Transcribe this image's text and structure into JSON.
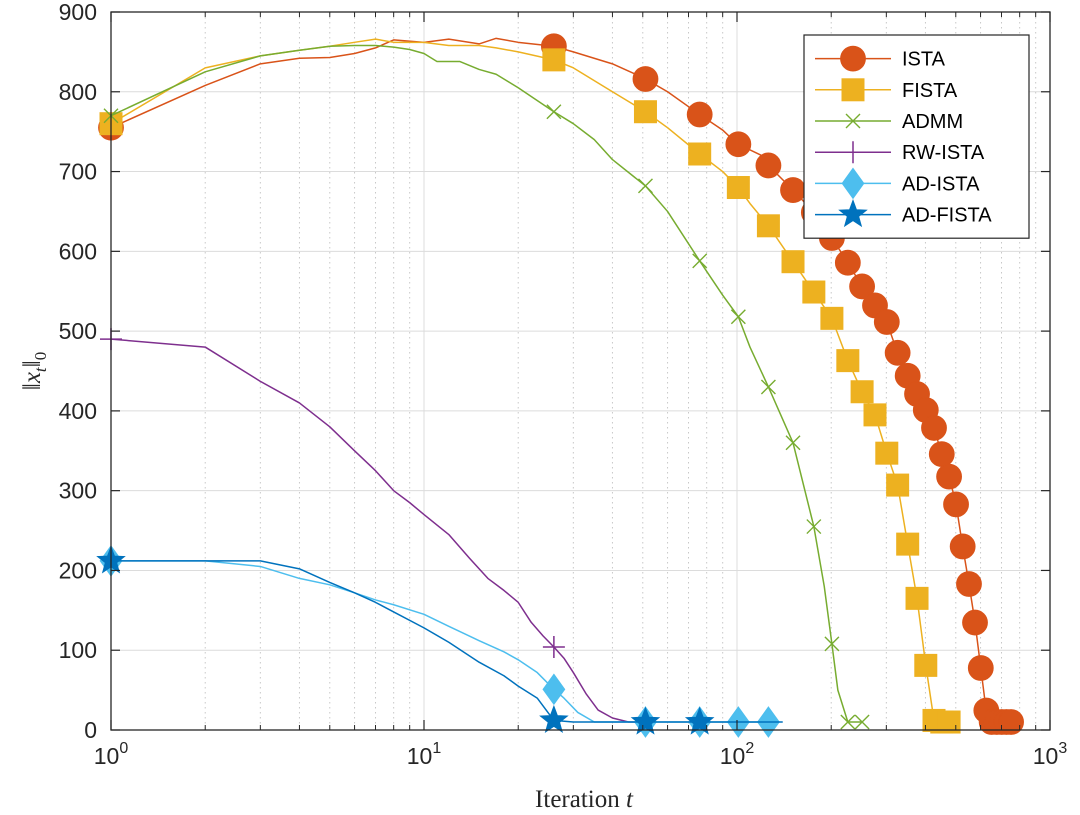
{
  "chart_data": {
    "type": "line",
    "title": "",
    "xlabel_prefix": "Iteration ",
    "xlabel_var": "t",
    "ylabel": "||x_t||_0",
    "xscale": "log",
    "xlim": [
      1,
      1000
    ],
    "ylim": [
      0,
      900
    ],
    "yticks": [
      0,
      100,
      200,
      300,
      400,
      500,
      600,
      700,
      800,
      900
    ],
    "xticks": [
      1,
      10,
      100,
      1000
    ],
    "xtick_base": "10",
    "xtick_exponents": [
      "0",
      "1",
      "2",
      "3"
    ],
    "grid": true,
    "legend_position": "top-right",
    "series": [
      {
        "name": "ISTA",
        "color": "#D95319",
        "marker": "circle",
        "points": [
          [
            1,
            755
          ],
          [
            2,
            808
          ],
          [
            3,
            835
          ],
          [
            4,
            842
          ],
          [
            5,
            843
          ],
          [
            6,
            848
          ],
          [
            7,
            855
          ],
          [
            8,
            865
          ],
          [
            10,
            862
          ],
          [
            12,
            866
          ],
          [
            15,
            860
          ],
          [
            17,
            867
          ],
          [
            20,
            862
          ],
          [
            26,
            857
          ],
          [
            30,
            850
          ],
          [
            40,
            835
          ],
          [
            50,
            818
          ],
          [
            60,
            800
          ],
          [
            75,
            773
          ],
          [
            90,
            752
          ],
          [
            100,
            735
          ],
          [
            120,
            720
          ],
          [
            125,
            709
          ],
          [
            150,
            678
          ],
          [
            175,
            650
          ],
          [
            200,
            618
          ],
          [
            225,
            587
          ],
          [
            250,
            557
          ],
          [
            275,
            533
          ],
          [
            300,
            513
          ],
          [
            325,
            474
          ],
          [
            350,
            445
          ],
          [
            375,
            422
          ],
          [
            400,
            402
          ],
          [
            425,
            380
          ],
          [
            450,
            347
          ],
          [
            475,
            319
          ],
          [
            500,
            285
          ],
          [
            525,
            232
          ],
          [
            550,
            185
          ],
          [
            575,
            137
          ],
          [
            600,
            80
          ],
          [
            625,
            25
          ],
          [
            650,
            10
          ],
          [
            675,
            10
          ],
          [
            700,
            10
          ],
          [
            725,
            10
          ],
          [
            750,
            10
          ]
        ],
        "markers_x": [
          1,
          26,
          51,
          76,
          101,
          126,
          151,
          176,
          201,
          226,
          251,
          276,
          301,
          326,
          351,
          376,
          401,
          426,
          451,
          476,
          501,
          526,
          551,
          576,
          601,
          626,
          651,
          676,
          701,
          726,
          751
        ]
      },
      {
        "name": "FISTA",
        "color": "#EDB120",
        "marker": "square",
        "points": [
          [
            1,
            760
          ],
          [
            2,
            830
          ],
          [
            3,
            845
          ],
          [
            4,
            852
          ],
          [
            5,
            857
          ],
          [
            6,
            862
          ],
          [
            7,
            866
          ],
          [
            8,
            862
          ],
          [
            10,
            862
          ],
          [
            12,
            858
          ],
          [
            15,
            858
          ],
          [
            17,
            855
          ],
          [
            20,
            850
          ],
          [
            26,
            840
          ],
          [
            30,
            830
          ],
          [
            40,
            800
          ],
          [
            51,
            775
          ],
          [
            60,
            755
          ],
          [
            76,
            722
          ],
          [
            90,
            700
          ],
          [
            101,
            680
          ],
          [
            110,
            660
          ],
          [
            126,
            632
          ],
          [
            151,
            587
          ],
          [
            176,
            549
          ],
          [
            201,
            516
          ],
          [
            226,
            463
          ],
          [
            251,
            424
          ],
          [
            276,
            395
          ],
          [
            301,
            347
          ],
          [
            326,
            307
          ],
          [
            351,
            233
          ],
          [
            376,
            165
          ],
          [
            401,
            81
          ],
          [
            426,
            12
          ],
          [
            451,
            10
          ],
          [
            476,
            10
          ]
        ],
        "markers_x": [
          1,
          26,
          51,
          76,
          101,
          126,
          151,
          176,
          201,
          226,
          251,
          276,
          301,
          326,
          351,
          376,
          401,
          426,
          451,
          476
        ]
      },
      {
        "name": "ADMM",
        "color": "#77AC30",
        "marker": "x",
        "points": [
          [
            1,
            770
          ],
          [
            2,
            825
          ],
          [
            3,
            845
          ],
          [
            4,
            852
          ],
          [
            5,
            857
          ],
          [
            6,
            858
          ],
          [
            7,
            858
          ],
          [
            8,
            856
          ],
          [
            9,
            853
          ],
          [
            10,
            848
          ],
          [
            11,
            838
          ],
          [
            13,
            838
          ],
          [
            15,
            828
          ],
          [
            17,
            822
          ],
          [
            20,
            805
          ],
          [
            26,
            775
          ],
          [
            30,
            760
          ],
          [
            35,
            740
          ],
          [
            40,
            715
          ],
          [
            51,
            682
          ],
          [
            60,
            650
          ],
          [
            76,
            588
          ],
          [
            90,
            545
          ],
          [
            101,
            518
          ],
          [
            110,
            480
          ],
          [
            126,
            430
          ],
          [
            151,
            360
          ],
          [
            176,
            255
          ],
          [
            190,
            180
          ],
          [
            201,
            108
          ],
          [
            210,
            50
          ],
          [
            226,
            10
          ],
          [
            251,
            10
          ]
        ],
        "markers_x": [
          1,
          26,
          51,
          76,
          101,
          126,
          151,
          176,
          201,
          226,
          251
        ]
      },
      {
        "name": "RW-ISTA",
        "color": "#7E2F8E",
        "marker": "plus",
        "points": [
          [
            1,
            490
          ],
          [
            2,
            480
          ],
          [
            3,
            437
          ],
          [
            4,
            410
          ],
          [
            5,
            380
          ],
          [
            6,
            350
          ],
          [
            7,
            325
          ],
          [
            8,
            300
          ],
          [
            9,
            285
          ],
          [
            10,
            270
          ],
          [
            12,
            245
          ],
          [
            14,
            215
          ],
          [
            16,
            190
          ],
          [
            18,
            175
          ],
          [
            20,
            160
          ],
          [
            22,
            135
          ],
          [
            24,
            118
          ],
          [
            26,
            104
          ],
          [
            28,
            90
          ],
          [
            30,
            72
          ],
          [
            33,
            45
          ],
          [
            36,
            25
          ],
          [
            40,
            15
          ],
          [
            45,
            10
          ],
          [
            55,
            10
          ]
        ],
        "markers_x": [
          1,
          26
        ]
      },
      {
        "name": "AD-ISTA",
        "color": "#4DBEEE",
        "marker": "diamond",
        "points": [
          [
            1,
            212
          ],
          [
            2,
            212
          ],
          [
            3,
            205
          ],
          [
            4,
            190
          ],
          [
            5,
            182
          ],
          [
            6,
            172
          ],
          [
            7,
            163
          ],
          [
            8,
            157
          ],
          [
            10,
            145
          ],
          [
            12,
            130
          ],
          [
            15,
            112
          ],
          [
            18,
            98
          ],
          [
            20,
            88
          ],
          [
            23,
            72
          ],
          [
            26,
            51
          ],
          [
            28,
            40
          ],
          [
            31,
            22
          ],
          [
            35,
            10
          ],
          [
            40,
            10
          ],
          [
            51,
            10
          ],
          [
            76,
            10
          ],
          [
            101,
            10
          ],
          [
            126,
            10
          ]
        ],
        "markers_x": [
          1,
          26,
          51,
          76,
          101,
          126
        ]
      },
      {
        "name": "AD-FISTA",
        "color": "#0072BD",
        "marker": "star",
        "points": [
          [
            1,
            212
          ],
          [
            2,
            212
          ],
          [
            3,
            212
          ],
          [
            4,
            202
          ],
          [
            5,
            185
          ],
          [
            6,
            172
          ],
          [
            7,
            160
          ],
          [
            8,
            148
          ],
          [
            10,
            128
          ],
          [
            12,
            110
          ],
          [
            15,
            85
          ],
          [
            18,
            68
          ],
          [
            20,
            55
          ],
          [
            23,
            40
          ],
          [
            26,
            12
          ],
          [
            30,
            10
          ],
          [
            40,
            10
          ],
          [
            51,
            10
          ],
          [
            76,
            10
          ],
          [
            100,
            10
          ],
          [
            140,
            10
          ]
        ],
        "markers_x": [
          1,
          26,
          51,
          76
        ]
      }
    ]
  }
}
